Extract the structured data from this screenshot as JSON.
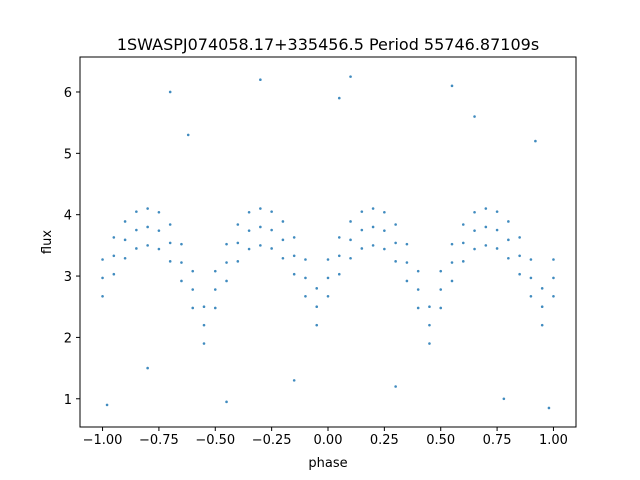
{
  "chart_data": {
    "type": "scatter",
    "title": "1SWASPJ074058.17+335456.5 Period 55746.87109s",
    "xlabel": "phase",
    "ylabel": "flux",
    "color": "#1f77b4",
    "xlim": [
      -1.1,
      1.1
    ],
    "ylim": [
      0.54,
      6.57
    ],
    "xticks": [
      {
        "value": -1,
        "label": "−1.00"
      },
      {
        "value": -0.75,
        "label": "−0.75"
      },
      {
        "value": -0.5,
        "label": "−0.50"
      },
      {
        "value": -0.25,
        "label": "−0.25"
      },
      {
        "value": 0,
        "label": "0.00"
      },
      {
        "value": 0.25,
        "label": "0.25"
      },
      {
        "value": 0.5,
        "label": "0.50"
      },
      {
        "value": 0.75,
        "label": "0.75"
      },
      {
        "value": 1,
        "label": "1.00"
      }
    ],
    "yticks": [
      1,
      2,
      3,
      4,
      5,
      6
    ],
    "x": [
      -1,
      -0.95,
      -0.9,
      -0.85,
      -0.8,
      -0.75,
      -0.7,
      -0.65,
      -0.6,
      -0.55,
      -0.5,
      -0.45,
      -0.4,
      -0.35,
      -0.3,
      -0.25,
      -0.2,
      -0.15,
      -0.1,
      -0.05,
      0,
      0.05,
      0.1,
      0.15,
      0.2,
      0.25,
      0.3,
      0.35,
      0.4,
      0.45,
      0.5,
      0.55,
      0.6,
      0.65,
      0.7,
      0.75,
      0.8,
      0.85,
      0.9,
      0.95,
      1,
      -1,
      -0.95,
      -0.9,
      -0.85,
      -0.8,
      -0.75,
      -0.7,
      -0.65,
      -0.6,
      -0.55,
      -0.5,
      -0.45,
      -0.4,
      -0.35,
      -0.3,
      -0.25,
      -0.2,
      -0.15,
      -0.1,
      -0.05,
      0,
      0.05,
      0.1,
      0.15,
      0.2,
      0.25,
      0.3,
      0.35,
      0.4,
      0.45,
      0.5,
      0.55,
      0.6,
      0.65,
      0.7,
      0.75,
      0.8,
      0.85,
      0.9,
      0.95,
      1,
      -1,
      -0.95,
      -0.9,
      -0.85,
      -0.8,
      -0.75,
      -0.7,
      -0.65,
      -0.6,
      -0.55,
      -0.5,
      -0.45,
      -0.4,
      -0.35,
      -0.3,
      -0.25,
      -0.2,
      -0.15,
      -0.1,
      -0.05,
      0,
      0.05,
      0.1,
      0.15,
      0.2,
      0.25,
      0.3,
      0.35,
      0.4,
      0.45,
      0.5,
      0.55,
      0.6,
      0.65,
      0.7,
      0.75,
      0.8,
      0.85,
      0.9,
      0.95,
      1,
      -0.98,
      -0.62,
      -0.3,
      0.05,
      0.3,
      0.55,
      0.78,
      -0.15,
      0.92,
      -0.8,
      0.1,
      -0.45,
      0.65,
      0.98,
      -0.7
    ],
    "values": [
      3.27,
      3.63,
      3.89,
      4.05,
      4.1,
      4.04,
      3.84,
      3.52,
      3.08,
      2.5,
      3.08,
      3.52,
      3.84,
      4.04,
      4.1,
      4.05,
      3.89,
      3.63,
      3.27,
      2.8,
      3.27,
      3.63,
      3.89,
      4.05,
      4.1,
      4.04,
      3.84,
      3.52,
      3.08,
      2.5,
      3.08,
      3.52,
      3.84,
      4.04,
      4.1,
      4.05,
      3.89,
      3.63,
      3.27,
      2.8,
      3.27,
      2.97,
      3.33,
      3.59,
      3.75,
      3.8,
      3.74,
      3.54,
      3.22,
      2.78,
      2.2,
      2.78,
      3.22,
      3.54,
      3.74,
      3.8,
      3.75,
      3.59,
      3.33,
      2.97,
      2.5,
      2.97,
      3.33,
      3.59,
      3.75,
      3.8,
      3.74,
      3.54,
      3.22,
      2.78,
      2.2,
      2.78,
      3.22,
      3.54,
      3.74,
      3.8,
      3.75,
      3.59,
      3.33,
      2.97,
      2.5,
      2.97,
      2.67,
      3.03,
      3.29,
      3.45,
      3.5,
      3.44,
      3.24,
      2.92,
      2.48,
      1.9,
      2.48,
      2.92,
      3.24,
      3.44,
      3.5,
      3.45,
      3.29,
      3.03,
      2.67,
      2.2,
      2.67,
      3.03,
      3.29,
      3.45,
      3.5,
      3.44,
      3.24,
      2.92,
      2.48,
      1.9,
      2.48,
      2.92,
      3.24,
      3.44,
      3.5,
      3.45,
      3.29,
      3.03,
      2.67,
      2.2,
      2.67,
      0.9,
      5.3,
      6.2,
      5.9,
      1.2,
      6.1,
      1.0,
      1.3,
      5.2,
      1.5,
      6.25,
      0.95,
      5.6,
      0.85,
      6.0
    ]
  }
}
